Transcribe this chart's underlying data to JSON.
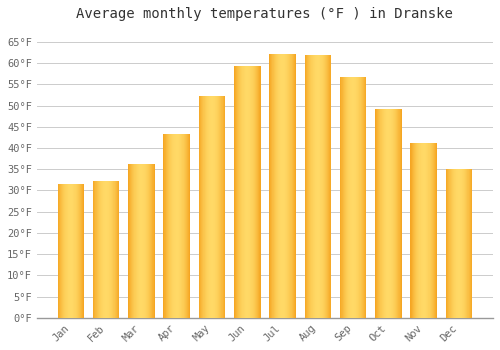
{
  "title": "Average monthly temperatures (°F ) in Dranske",
  "months": [
    "Jan",
    "Feb",
    "Mar",
    "Apr",
    "May",
    "Jun",
    "Jul",
    "Aug",
    "Sep",
    "Oct",
    "Nov",
    "Dec"
  ],
  "values": [
    31.5,
    32.2,
    36.2,
    43.3,
    52.2,
    59.2,
    62.2,
    62.0,
    56.8,
    49.1,
    41.2,
    35.0
  ],
  "bar_color_left": "#F5A623",
  "bar_color_center": "#FFD966",
  "bar_color_right": "#F5A623",
  "background_color": "#ffffff",
  "plot_bg_color": "#ffffff",
  "grid_color": "#cccccc",
  "ylim": [
    0,
    68
  ],
  "yticks": [
    0,
    5,
    10,
    15,
    20,
    25,
    30,
    35,
    40,
    45,
    50,
    55,
    60,
    65
  ],
  "ytick_labels": [
    "0°F",
    "5°F",
    "10°F",
    "15°F",
    "20°F",
    "25°F",
    "30°F",
    "35°F",
    "40°F",
    "45°F",
    "50°F",
    "55°F",
    "60°F",
    "65°F"
  ],
  "title_fontsize": 10,
  "tick_fontsize": 7.5,
  "bar_width": 0.75,
  "gradient_steps": 50
}
